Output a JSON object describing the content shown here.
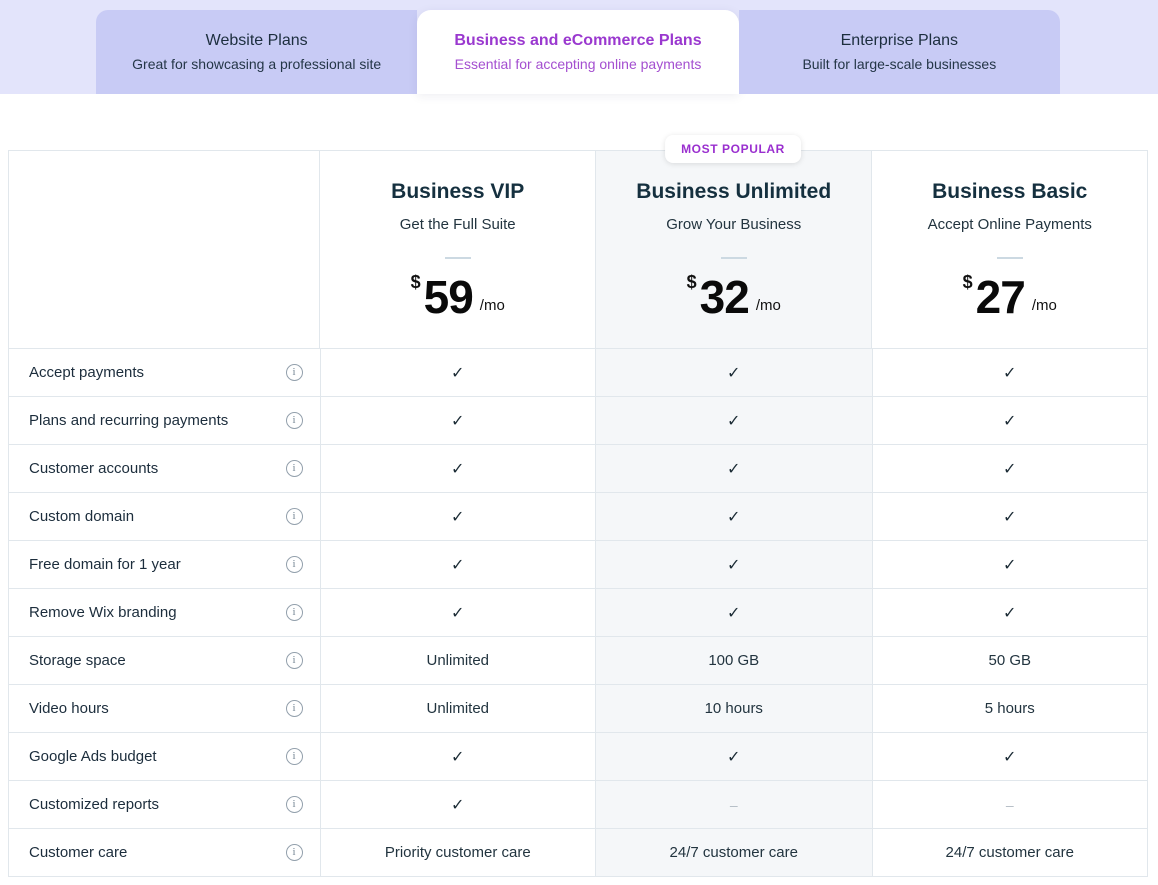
{
  "tabs": [
    {
      "title": "Website Plans",
      "subtitle": "Great for showcasing a professional site",
      "active": false
    },
    {
      "title": "Business and eCommerce Plans",
      "subtitle": "Essential for accepting online payments",
      "active": true
    },
    {
      "title": "Enterprise Plans",
      "subtitle": "Built for large-scale businesses",
      "active": false
    }
  ],
  "badge": {
    "label": "MOST POPULAR"
  },
  "plans": [
    {
      "name": "Business VIP",
      "tagline": "Get the Full Suite",
      "currency": "$",
      "price": "59",
      "per": "/mo",
      "highlight": false
    },
    {
      "name": "Business Unlimited",
      "tagline": "Grow Your Business",
      "currency": "$",
      "price": "32",
      "per": "/mo",
      "highlight": true
    },
    {
      "name": "Business Basic",
      "tagline": "Accept Online Payments",
      "currency": "$",
      "price": "27",
      "per": "/mo",
      "highlight": false
    }
  ],
  "table": {
    "features": [
      {
        "label": "Accept payments",
        "values": [
          "check",
          "check",
          "check"
        ]
      },
      {
        "label": "Plans and recurring payments",
        "values": [
          "check",
          "check",
          "check"
        ]
      },
      {
        "label": "Customer accounts",
        "values": [
          "check",
          "check",
          "check"
        ]
      },
      {
        "label": "Custom domain",
        "values": [
          "check",
          "check",
          "check"
        ]
      },
      {
        "label": "Free domain for 1 year",
        "values": [
          "check",
          "check",
          "check"
        ]
      },
      {
        "label": "Remove Wix branding",
        "values": [
          "check",
          "check",
          "check"
        ]
      },
      {
        "label": "Storage space",
        "values": [
          "Unlimited",
          "100 GB",
          "50 GB"
        ]
      },
      {
        "label": "Video hours",
        "values": [
          "Unlimited",
          "10 hours",
          "5 hours"
        ]
      },
      {
        "label": "Google Ads budget",
        "values": [
          "check",
          "check",
          "check"
        ]
      },
      {
        "label": "Customized reports",
        "values": [
          "check",
          "dash",
          "dash"
        ]
      },
      {
        "label": "Customer care",
        "values": [
          "Priority customer care",
          "24/7 customer care",
          "24/7 customer care"
        ]
      }
    ]
  },
  "icons": {
    "info": "i",
    "check": "✓",
    "dash": "–"
  },
  "colors": {
    "band_background": "#e3e4fb",
    "tab_background": "#c8cbf5",
    "active_tab_background": "#ffffff",
    "accent_purple": "#9a38cf",
    "dark_text": "#15303f",
    "highlight_column": "#f5f7f9",
    "table_border": "#e1e7ec",
    "muted_dash": "#b3bcc4"
  }
}
